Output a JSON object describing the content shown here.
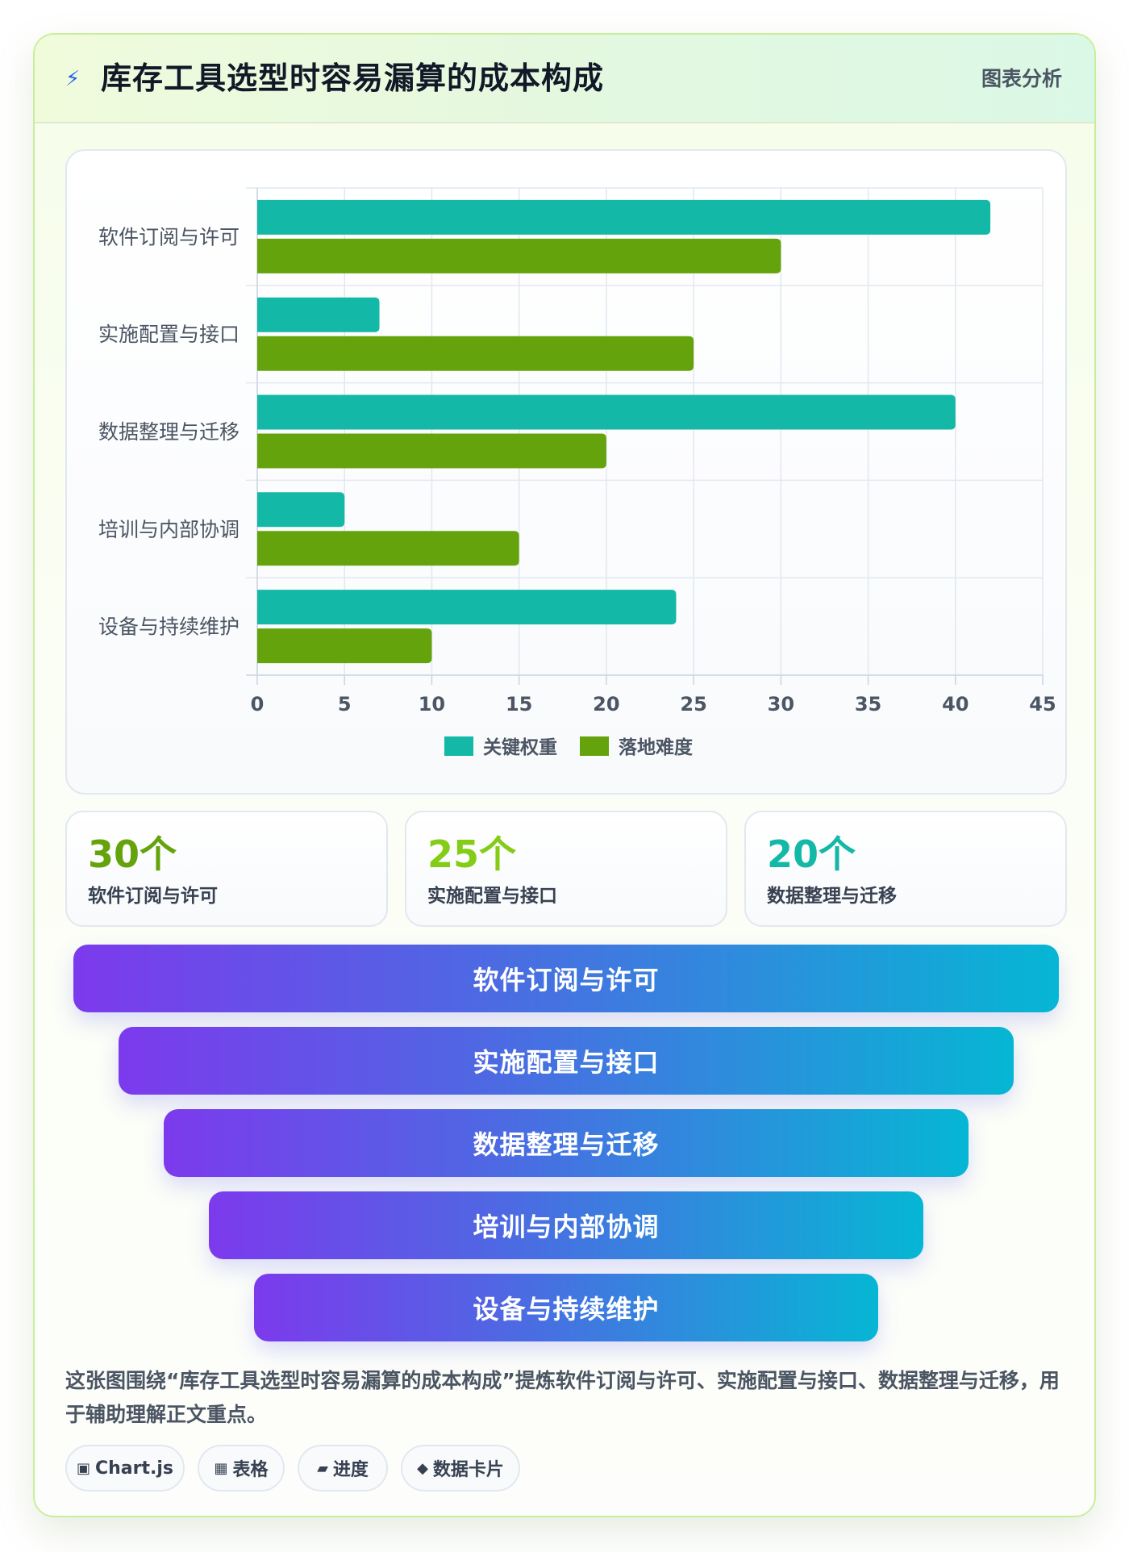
{
  "header": {
    "icon": "lightning-icon",
    "title": "库存工具选型时容易漏算的成本构成",
    "tag": "图表分析"
  },
  "chart_data": {
    "type": "bar",
    "orientation": "horizontal",
    "categories": [
      "软件订阅与许可",
      "实施配置与接口",
      "数据整理与迁移",
      "培训与内部协调",
      "设备与持续维护"
    ],
    "series": [
      {
        "name": "关键权重",
        "color": "#14b8a6",
        "values": [
          42,
          7,
          40,
          5,
          24
        ]
      },
      {
        "name": "落地难度",
        "color": "#65a30d",
        "values": [
          30,
          25,
          20,
          15,
          10
        ]
      }
    ],
    "xlim": [
      0,
      45
    ],
    "x_ticks": [
      0,
      5,
      10,
      15,
      20,
      25,
      30,
      35,
      40,
      45
    ],
    "grid": true,
    "legend_position": "bottom"
  },
  "stats": [
    {
      "value": "30个",
      "label": "软件订阅与许可",
      "color": "#65a30d"
    },
    {
      "value": "25个",
      "label": "实施配置与接口",
      "color": "#84cc16"
    },
    {
      "value": "20个",
      "label": "数据整理与迁移",
      "color": "#14b8a6"
    }
  ],
  "funnel": [
    "软件订阅与许可",
    "实施配置与接口",
    "数据整理与迁移",
    "培训与内部协调",
    "设备与持续维护"
  ],
  "description": "这张图围绕“库存工具选型时容易漏算的成本构成”提炼软件订阅与许可、实施配置与接口、数据整理与迁移，用于辅助理解正文重点。",
  "tags": [
    {
      "icon": "▣",
      "icon_name": "chart-icon",
      "label": "Chart.js"
    },
    {
      "icon": "▦",
      "icon_name": "table-icon",
      "label": "表格"
    },
    {
      "icon": "▰",
      "icon_name": "progress-icon",
      "label": "进度"
    },
    {
      "icon": "◆",
      "icon_name": "data-card-icon",
      "label": "数据卡片"
    }
  ]
}
